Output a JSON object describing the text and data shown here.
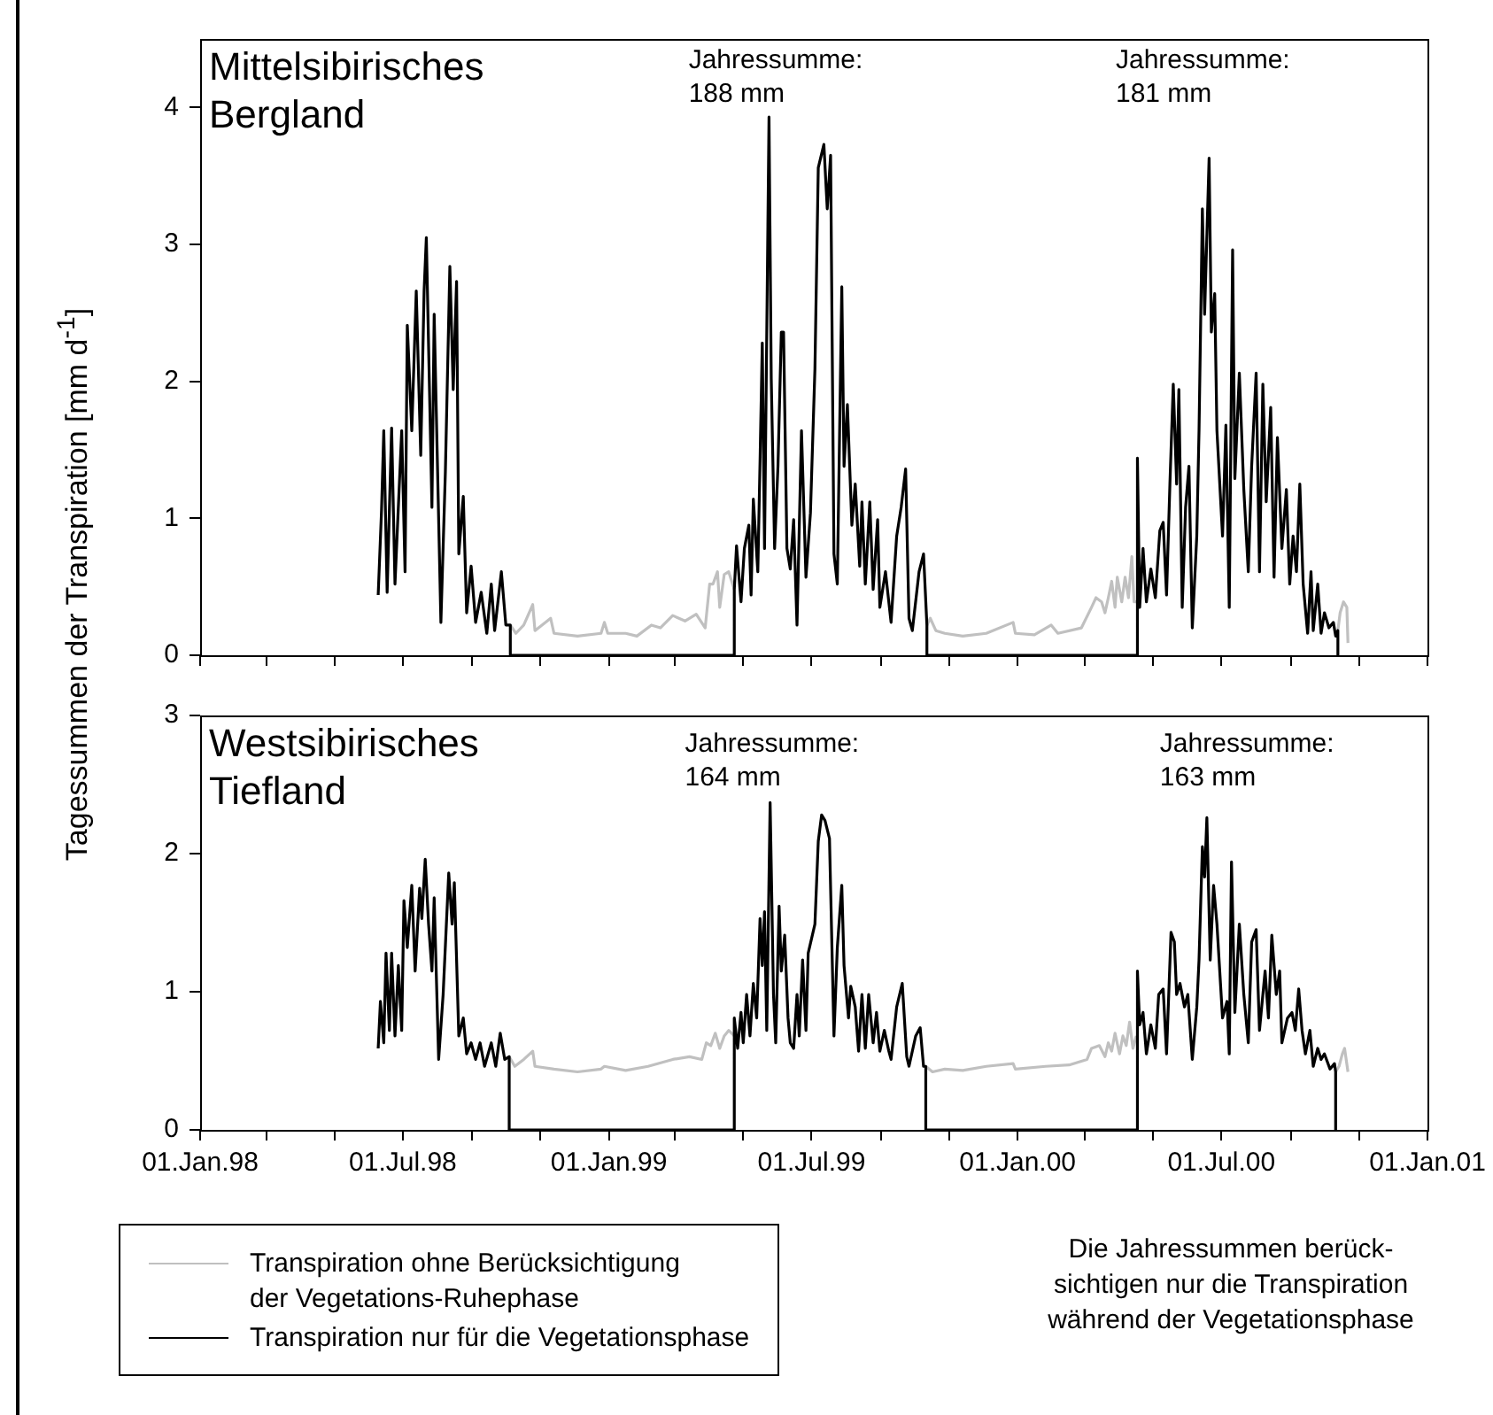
{
  "chart_data": [
    {
      "type": "line",
      "title": "Mittelsibirisches\nBergland",
      "ylabel": "Tagessummen der Transpiration [mm d$^{-1}$]",
      "xlim": [
        "1998-01-01",
        "2001-01-01"
      ],
      "xticks": [
        {
          "value": "1998-01-01",
          "label": null
        },
        {
          "value": "1998-03-01",
          "label": null
        },
        {
          "value": "1998-05-01",
          "label": null
        },
        {
          "value": "1998-07-01",
          "label": null
        },
        {
          "value": "1998-09-01",
          "label": null
        },
        {
          "value": "1998-11-01",
          "label": null
        },
        {
          "value": "1999-01-01",
          "label": null
        },
        {
          "value": "1999-03-01",
          "label": null
        },
        {
          "value": "1999-05-01",
          "label": null
        },
        {
          "value": "1999-07-01",
          "label": null
        },
        {
          "value": "1999-09-01",
          "label": null
        },
        {
          "value": "1999-11-01",
          "label": null
        },
        {
          "value": "2000-01-01",
          "label": null
        },
        {
          "value": "2000-03-01",
          "label": null
        },
        {
          "value": "2000-05-01",
          "label": null
        },
        {
          "value": "2000-07-01",
          "label": null
        },
        {
          "value": "2000-09-01",
          "label": null
        },
        {
          "value": "2000-11-01",
          "label": null
        },
        {
          "value": "2001-01-01",
          "label": null
        }
      ],
      "ylim": [
        0,
        4.5
      ],
      "yticks": [
        0,
        1,
        2,
        3,
        4
      ],
      "tick_labels": "y",
      "annotations": [
        "Jahressumme:\n188 mm",
        "Jahressumme:\n181 mm"
      ],
      "series": [
        {
          "color": "#c0c0c0",
          "x": [
            "1998-10-05",
            "1998-10-10",
            "1998-10-17",
            "1998-10-25",
            "1998-10-27",
            "1998-11-10",
            "1998-11-13",
            "1998-12-04",
            "1998-12-25",
            "1998-12-28",
            "1998-12-31",
            "1999-01-16",
            "1999-01-26",
            "1999-02-08",
            "1999-02-16",
            "1999-02-27",
            "1999-03-10",
            "1999-03-20",
            "1999-03-28",
            "1999-04-01",
            "1999-04-04",
            "1999-04-08",
            "1999-04-10",
            "1999-04-14",
            "1999-04-18",
            "1999-04-23",
            "1999-07-01",
            "1999-10-12",
            "1999-10-15",
            "1999-10-20",
            "1999-10-28",
            "1999-11-13",
            "1999-12-04",
            "1999-12-28",
            "1999-12-30",
            "2000-01-16",
            "2000-01-31",
            "2000-02-06",
            "2000-02-27",
            "2000-03-07",
            "2000-03-11",
            "2000-03-16",
            "2000-03-19",
            "2000-03-22",
            "2000-03-25",
            "2000-03-28",
            "2000-03-30",
            "2000-04-03",
            "2000-04-06",
            "2000-04-09",
            "2000-04-12",
            "2000-04-14",
            "2000-04-17",
            "2000-07-01",
            "2000-10-13",
            "2000-10-15",
            "2000-10-18",
            "2000-10-21",
            "2000-10-22"
          ],
          "values": [
            0.22,
            0.16,
            0.22,
            0.37,
            0.18,
            0.27,
            0.16,
            0.14,
            0.16,
            0.24,
            0.16,
            0.16,
            0.14,
            0.22,
            0.2,
            0.29,
            0.25,
            0.3,
            0.2,
            0.52,
            0.52,
            0.61,
            0.35,
            0.59,
            0.61,
            0.48,
            null,
            0.22,
            0.27,
            0.18,
            0.16,
            0.14,
            0.16,
            0.24,
            0.16,
            0.15,
            0.22,
            0.16,
            0.2,
            0.35,
            0.42,
            0.39,
            0.31,
            0.42,
            0.54,
            0.35,
            0.57,
            0.39,
            0.57,
            0.42,
            0.72,
            0.39,
            0.39,
            null,
            0.18,
            0.31,
            0.39,
            0.35,
            0.09
          ]
        },
        {
          "color": "#000000",
          "x": [
            "1998-06-09",
            "1998-06-12",
            "1998-06-14",
            "1998-06-17",
            "1998-06-21",
            "1998-06-24",
            "1998-06-30",
            "1998-07-03",
            "1998-07-05",
            "1998-07-09",
            "1998-07-13",
            "1998-07-17",
            "1998-07-20",
            "1998-07-22",
            "1998-07-27",
            "1998-07-29",
            "1998-08-04",
            "1998-08-08",
            "1998-08-12",
            "1998-08-15",
            "1998-08-18",
            "1998-08-20",
            "1998-08-24",
            "1998-08-27",
            "1998-08-31",
            "1998-09-04",
            "1998-09-09",
            "1998-09-14",
            "1998-09-18",
            "1998-09-21",
            "1998-09-27",
            "1998-10-01",
            "1998-10-05",
            "1998-10-05",
            "1999-04-23",
            "1999-04-23",
            "1999-04-25",
            "1999-04-29",
            "1999-05-02",
            "1999-05-06",
            "1999-05-08",
            "1999-05-10",
            "1999-05-14",
            "1999-05-16",
            "1999-05-18",
            "1999-05-20",
            "1999-05-24",
            "1999-05-26",
            "1999-05-29",
            "1999-06-01",
            "1999-06-04",
            "1999-06-06",
            "1999-06-09",
            "1999-06-12",
            "1999-06-15",
            "1999-06-18",
            "1999-06-22",
            "1999-06-26",
            "1999-06-30",
            "1999-07-04",
            "1999-07-07",
            "1999-07-12",
            "1999-07-15",
            "1999-07-18",
            "1999-07-21",
            "1999-07-24",
            "1999-07-28",
            "1999-07-30",
            "1999-08-02",
            "1999-08-06",
            "1999-08-09",
            "1999-08-13",
            "1999-08-15",
            "1999-08-18",
            "1999-08-22",
            "1999-08-25",
            "1999-08-29",
            "1999-08-31",
            "1999-09-05",
            "1999-09-10",
            "1999-09-15",
            "1999-09-19",
            "1999-09-23",
            "1999-09-26",
            "1999-09-29",
            "1999-10-05",
            "1999-10-09",
            "1999-10-12",
            "1999-10-12",
            "2000-04-17",
            "2000-04-17",
            "2000-04-19",
            "2000-04-22",
            "2000-04-25",
            "2000-04-29",
            "2000-05-03",
            "2000-05-07",
            "2000-05-10",
            "2000-05-13",
            "2000-05-16",
            "2000-05-19",
            "2000-05-22",
            "2000-05-24",
            "2000-05-27",
            "2000-05-30",
            "2000-06-02",
            "2000-06-05",
            "2000-06-09",
            "2000-06-11",
            "2000-06-14",
            "2000-06-16",
            "2000-06-20",
            "2000-06-22",
            "2000-06-25",
            "2000-06-27",
            "2000-07-02",
            "2000-07-05",
            "2000-07-08",
            "2000-07-11",
            "2000-07-13",
            "2000-07-17",
            "2000-07-21",
            "2000-07-25",
            "2000-07-28",
            "2000-08-01",
            "2000-08-04",
            "2000-08-07",
            "2000-08-10",
            "2000-08-14",
            "2000-08-17",
            "2000-08-20",
            "2000-08-24",
            "2000-08-28",
            "2000-08-31",
            "2000-09-03",
            "2000-09-06",
            "2000-09-09",
            "2000-09-12",
            "2000-09-16",
            "2000-09-19",
            "2000-09-21",
            "2000-09-25",
            "2000-09-28",
            "2000-10-01",
            "2000-10-05",
            "2000-10-09",
            "2000-10-11",
            "2000-10-13",
            "2000-10-13"
          ],
          "values": [
            0.44,
            1.06,
            1.64,
            0.46,
            1.66,
            0.52,
            1.64,
            0.61,
            2.41,
            1.64,
            2.66,
            1.46,
            2.66,
            3.05,
            1.08,
            2.49,
            0.24,
            1.34,
            2.84,
            1.94,
            2.73,
            0.74,
            1.16,
            0.31,
            0.65,
            0.24,
            0.46,
            0.16,
            0.52,
            0.18,
            0.61,
            0.22,
            0.22,
            0,
            0,
            0.48,
            0.8,
            0.39,
            0.78,
            0.95,
            0.44,
            1.14,
            0.61,
            1.42,
            2.28,
            0.78,
            3.93,
            2.02,
            0.78,
            1.38,
            2.36,
            2.36,
            0.78,
            0.63,
            0.99,
            0.22,
            1.64,
            0.57,
            1.04,
            2.09,
            3.56,
            3.73,
            3.26,
            3.65,
            0.74,
            0.52,
            2.69,
            1.38,
            1.83,
            0.95,
            1.25,
            0.65,
            1.12,
            0.52,
            1.12,
            0.48,
            0.99,
            0.35,
            0.61,
            0.24,
            0.87,
            1.08,
            1.36,
            0.27,
            0.18,
            0.61,
            0.74,
            0.22,
            0,
            0,
            1.44,
            0.35,
            0.78,
            0.39,
            0.63,
            0.42,
            0.91,
            0.97,
            0.44,
            1.25,
            1.98,
            1.25,
            1.94,
            0.35,
            1.08,
            1.38,
            0.2,
            0.87,
            1.64,
            3.26,
            2.49,
            3.63,
            2.36,
            2.64,
            1.64,
            0.87,
            1.68,
            0.35,
            2.96,
            1.29,
            2.06,
            1.21,
            0.61,
            1.38,
            2.06,
            0.61,
            1.98,
            1.12,
            1.81,
            0.57,
            1.59,
            0.78,
            1.21,
            0.52,
            0.87,
            0.61,
            1.25,
            0.52,
            0.16,
            0.61,
            0.18,
            0.52,
            0.16,
            0.31,
            0.2,
            0.24,
            0.14,
            0.18,
            0
          ]
        }
      ]
    },
    {
      "type": "line",
      "title": "Westsibirisches\nTiefland",
      "xlim": [
        "1998-01-01",
        "2001-01-01"
      ],
      "xticks": [
        {
          "value": "1998-01-01",
          "label": "01.Jan.98"
        },
        {
          "value": "1998-03-01",
          "label": null
        },
        {
          "value": "1998-05-01",
          "label": null
        },
        {
          "value": "1998-07-01",
          "label": "01.Jul.98"
        },
        {
          "value": "1998-09-01",
          "label": null
        },
        {
          "value": "1998-11-01",
          "label": null
        },
        {
          "value": "1999-01-01",
          "label": "01.Jan.99"
        },
        {
          "value": "1999-03-01",
          "label": null
        },
        {
          "value": "1999-05-01",
          "label": null
        },
        {
          "value": "1999-07-01",
          "label": "01.Jul.99"
        },
        {
          "value": "1999-09-01",
          "label": null
        },
        {
          "value": "1999-11-01",
          "label": null
        },
        {
          "value": "2000-01-01",
          "label": "01.Jan.00"
        },
        {
          "value": "2000-03-01",
          "label": null
        },
        {
          "value": "2000-05-01",
          "label": null
        },
        {
          "value": "2000-07-01",
          "label": "01.Jul.00"
        },
        {
          "value": "2000-09-01",
          "label": null
        },
        {
          "value": "2000-11-01",
          "label": null
        },
        {
          "value": "2001-01-01",
          "label": "01.Jan.01"
        }
      ],
      "ylim": [
        0,
        3
      ],
      "yticks": [
        0,
        1,
        2,
        3
      ],
      "legend": "bottom left",
      "annotations": [
        "Jahressumme:\n164 mm",
        "Jahressumme:\n163 mm",
        "Die Jahressummen berück-\nsichtigen nur die Transpiration\nwährend der Vegetationsphase"
      ],
      "series": [
        {
          "name": "Transpiration ohne Berücksichtigung\nder Vegetations-Ruhephase",
          "color": "#c0c0c0",
          "x": [
            "1998-10-04",
            "1998-10-09",
            "1998-10-17",
            "1998-10-25",
            "1998-10-27",
            "1998-11-13",
            "1998-12-04",
            "1998-12-25",
            "1998-12-28",
            "1999-01-16",
            "1999-02-05",
            "1999-02-27",
            "1999-03-14",
            "1999-03-25",
            "1999-03-29",
            "1999-04-02",
            "1999-04-06",
            "1999-04-10",
            "1999-04-14",
            "1999-04-18",
            "1999-04-23",
            "1999-07-01",
            "1999-10-11",
            "1999-10-17",
            "1999-10-28",
            "1999-11-13",
            "1999-12-04",
            "1999-12-28",
            "1999-12-30",
            "2000-01-26",
            "2000-02-16",
            "2000-03-03",
            "2000-03-07",
            "2000-03-14",
            "2000-03-19",
            "2000-03-22",
            "2000-03-25",
            "2000-03-28",
            "2000-04-01",
            "2000-04-04",
            "2000-04-07",
            "2000-04-10",
            "2000-04-13",
            "2000-04-16",
            "2000-07-01",
            "2000-10-11",
            "2000-10-14",
            "2000-10-17",
            "2000-10-19",
            "2000-10-22"
          ],
          "values": [
            0.53,
            0.46,
            0.51,
            0.57,
            0.46,
            0.44,
            0.42,
            0.44,
            0.46,
            0.43,
            0.46,
            0.51,
            0.53,
            0.51,
            0.63,
            0.61,
            0.7,
            0.59,
            0.68,
            0.72,
            0.68,
            null,
            0.46,
            0.42,
            0.44,
            0.43,
            0.46,
            0.48,
            0.44,
            0.46,
            0.47,
            0.51,
            0.59,
            0.61,
            0.53,
            0.63,
            0.57,
            0.7,
            0.55,
            0.68,
            0.61,
            0.78,
            0.59,
            0.68,
            null,
            0.42,
            0.46,
            0.55,
            0.59,
            0.42
          ]
        },
        {
          "name": "Transpiration nur für die Vegetationsphase",
          "color": "#000000",
          "x": [
            "1998-06-09",
            "1998-06-11",
            "1998-06-14",
            "1998-06-16",
            "1998-06-19",
            "1998-06-21",
            "1998-06-24",
            "1998-06-27",
            "1998-06-30",
            "1998-07-02",
            "1998-07-05",
            "1998-07-09",
            "1998-07-12",
            "1998-07-16",
            "1998-07-18",
            "1998-07-21",
            "1998-07-24",
            "1998-07-27",
            "1998-07-29",
            "1998-08-02",
            "1998-08-06",
            "1998-08-11",
            "1998-08-14",
            "1998-08-16",
            "1998-08-20",
            "1998-08-24",
            "1998-08-27",
            "1998-08-31",
            "1998-09-04",
            "1998-09-08",
            "1998-09-12",
            "1998-09-18",
            "1998-09-22",
            "1998-09-26",
            "1998-09-30",
            "1998-10-04",
            "1998-10-04",
            "1999-04-23",
            "1999-04-23",
            "1999-04-26",
            "1999-04-29",
            "1999-05-01",
            "1999-05-04",
            "1999-05-07",
            "1999-05-10",
            "1999-05-13",
            "1999-05-16",
            "1999-05-18",
            "1999-05-20",
            "1999-05-22",
            "1999-05-25",
            "1999-05-28",
            "1999-05-30",
            "1999-06-02",
            "1999-06-04",
            "1999-06-07",
            "1999-06-10",
            "1999-06-12",
            "1999-06-15",
            "1999-06-18",
            "1999-06-20",
            "1999-06-23",
            "1999-06-26",
            "1999-06-28",
            "1999-07-04",
            "1999-07-07",
            "1999-07-10",
            "1999-07-13",
            "1999-07-17",
            "1999-07-21",
            "1999-07-24",
            "1999-07-28",
            "1999-07-30",
            "1999-08-03",
            "1999-08-05",
            "1999-08-09",
            "1999-08-12",
            "1999-08-15",
            "1999-08-18",
            "1999-08-21",
            "1999-08-25",
            "1999-08-28",
            "1999-08-31",
            "1999-09-04",
            "1999-09-08",
            "1999-09-10",
            "1999-09-15",
            "1999-09-20",
            "1999-09-24",
            "1999-09-26",
            "1999-10-02",
            "1999-10-06",
            "1999-10-09",
            "1999-10-11",
            "1999-10-11",
            "2000-04-17",
            "2000-04-17",
            "2000-04-19",
            "2000-04-22",
            "2000-04-25",
            "2000-04-29",
            "2000-05-03",
            "2000-05-06",
            "2000-05-10",
            "2000-05-13",
            "2000-05-17",
            "2000-05-20",
            "2000-05-22",
            "2000-05-25",
            "2000-05-29",
            "2000-06-01",
            "2000-06-05",
            "2000-06-09",
            "2000-06-11",
            "2000-06-14",
            "2000-06-16",
            "2000-06-18",
            "2000-06-21",
            "2000-06-24",
            "2000-06-27",
            "2000-07-02",
            "2000-07-06",
            "2000-07-08",
            "2000-07-10",
            "2000-07-13",
            "2000-07-17",
            "2000-07-21",
            "2000-07-25",
            "2000-07-28",
            "2000-08-01",
            "2000-08-04",
            "2000-08-09",
            "2000-08-12",
            "2000-08-15",
            "2000-08-19",
            "2000-08-22",
            "2000-08-24",
            "2000-08-29",
            "2000-09-02",
            "2000-09-05",
            "2000-09-08",
            "2000-09-11",
            "2000-09-14",
            "2000-09-18",
            "2000-09-21",
            "2000-09-25",
            "2000-09-28",
            "2000-10-01",
            "2000-10-06",
            "2000-10-10",
            "2000-10-11",
            "2000-10-11"
          ],
          "values": [
            0.59,
            0.93,
            0.63,
            1.28,
            0.72,
            1.28,
            0.68,
            1.19,
            0.72,
            1.66,
            1.32,
            1.77,
            1.15,
            1.75,
            1.53,
            1.96,
            1.49,
            1.15,
            1.68,
            0.51,
            0.98,
            1.86,
            1.49,
            1.79,
            0.68,
            0.81,
            0.55,
            0.63,
            0.51,
            0.63,
            0.46,
            0.63,
            0.46,
            0.7,
            0.51,
            0.53,
            0,
            0,
            0.81,
            0.59,
            0.85,
            0.63,
            0.98,
            0.68,
            1.06,
            0.81,
            1.53,
            1.19,
            1.58,
            0.72,
            2.37,
            0.98,
            0.63,
            1.62,
            1.15,
            1.41,
            0.81,
            0.63,
            0.59,
            0.98,
            0.68,
            1.23,
            0.72,
            1.28,
            1.49,
            2.09,
            2.28,
            2.24,
            2.11,
            0.68,
            1.32,
            1.77,
            1.19,
            0.81,
            1.04,
            0.89,
            0.57,
            0.98,
            0.59,
            0.98,
            0.63,
            0.85,
            0.57,
            0.72,
            0.57,
            0.51,
            0.89,
            1.06,
            0.53,
            0.46,
            0.68,
            0.74,
            0.46,
            0.46,
            0,
            0,
            1.15,
            0.76,
            0.85,
            0.55,
            0.76,
            0.59,
            0.98,
            1.02,
            0.55,
            1.43,
            1.36,
            0.98,
            1.06,
            0.89,
            0.98,
            0.51,
            0.89,
            1.23,
            2.05,
            1.83,
            2.26,
            1.23,
            1.77,
            1.49,
            0.81,
            0.93,
            0.55,
            1.94,
            0.85,
            1.49,
            0.98,
            0.63,
            1.36,
            1.45,
            0.72,
            1.15,
            0.81,
            1.41,
            0.98,
            1.15,
            0.63,
            0.81,
            0.85,
            0.72,
            1.02,
            0.72,
            0.55,
            0.72,
            0.46,
            0.59,
            0.51,
            0.55,
            0.44,
            0.48,
            0.42,
            0
          ]
        }
      ]
    }
  ]
}
